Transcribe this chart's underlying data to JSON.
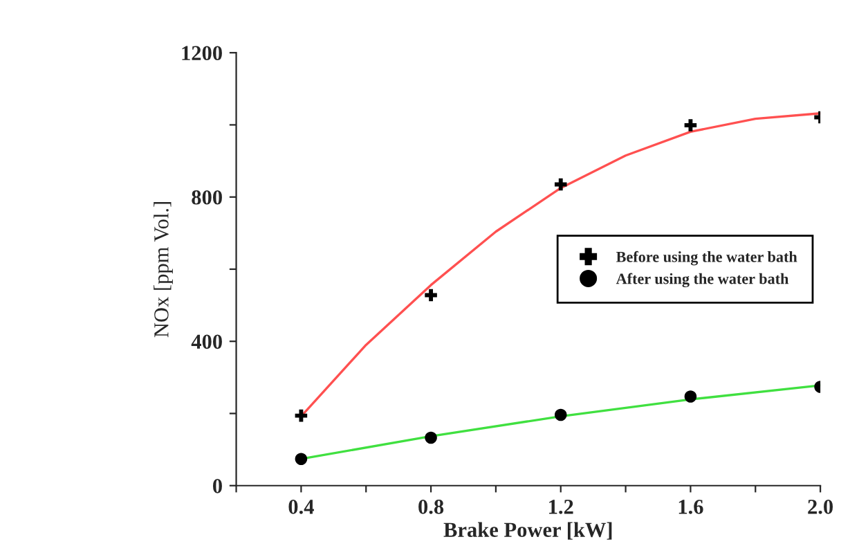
{
  "chart_data": {
    "type": "scatter",
    "xlabel": "Brake Power [kW]",
    "ylabel": "NOx [ppm Vol.]",
    "x": [
      0.4,
      0.8,
      1.2,
      1.6,
      2.0
    ],
    "series": [
      {
        "name": "Before using the water bath",
        "color": "#000000",
        "marker": "cross",
        "values": [
          194,
          528,
          835,
          999,
          1021
        ]
      },
      {
        "name": "After using the water bath",
        "color": "#000000",
        "marker": "circle",
        "values": [
          74,
          133,
          196,
          247,
          274
        ]
      },
      {
        "type": "line",
        "color": "#ff5050",
        "x": [
          0.4,
          0.6,
          0.8,
          1.0,
          1.2,
          1.4,
          1.6,
          1.8,
          2.0
        ],
        "values": [
          192,
          390,
          556,
          704,
          825,
          915,
          981,
          1017,
          1032
        ]
      },
      {
        "type": "line",
        "color": "#40e040",
        "x": [
          0.4,
          0.8,
          1.2,
          1.6,
          2.0
        ],
        "values": [
          74,
          137,
          192,
          239,
          278
        ]
      }
    ],
    "xlim": [
      0.2,
      2.0
    ],
    "ylim": [
      0,
      1200
    ],
    "xticks": [
      {
        "value": 0.2,
        "label": null
      },
      0.4,
      {
        "value": 0.6,
        "label": null
      },
      0.8,
      {
        "value": 1.0,
        "label": null
      },
      1.2,
      {
        "value": 1.4,
        "label": null
      },
      1.6,
      {
        "value": 1.8,
        "label": null
      },
      {
        "value": 2,
        "label": "2.0"
      }
    ],
    "yticks": [
      0,
      {
        "value": 200,
        "label": null
      },
      400,
      {
        "value": 600,
        "label": null
      },
      800,
      {
        "value": 1000,
        "label": null
      },
      1200
    ],
    "grid": false,
    "legend": "center right"
  }
}
